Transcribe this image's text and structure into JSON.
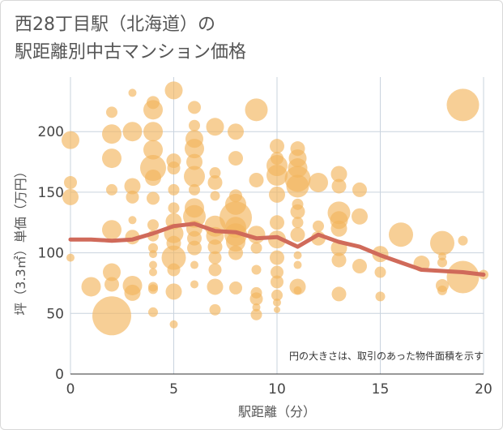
{
  "chart_data": {
    "type": "scatter",
    "title_line1": "西28丁目駅（北海道）の",
    "title_line2": "駅距離別中古マンション価格",
    "xlabel": "駅距離（分）",
    "ylabel": "坪（3.3㎡）単価（万円）",
    "annotation": "円の大きさは、取引のあった物件面積を示す",
    "xlim": [
      0,
      20
    ],
    "ylim": [
      0,
      245
    ],
    "xticks": [
      "0",
      "5",
      "10",
      "15",
      "20"
    ],
    "yticks": [
      "0",
      "50",
      "100",
      "150",
      "200"
    ],
    "xtick_values": [
      0,
      5,
      10,
      15,
      20
    ],
    "ytick_values": [
      0,
      50,
      100,
      150,
      200
    ],
    "grid": true,
    "colors": {
      "bubble": "#f3b55e",
      "trend": "#d06a5a",
      "grid": "#c9d3de"
    },
    "points": [
      {
        "x": 0,
        "y": 193,
        "s": 11
      },
      {
        "x": 0,
        "y": 158,
        "s": 8
      },
      {
        "x": 0,
        "y": 146,
        "s": 10
      },
      {
        "x": 0,
        "y": 96,
        "s": 5
      },
      {
        "x": 1,
        "y": 72,
        "s": 12
      },
      {
        "x": 2,
        "y": 216,
        "s": 7
      },
      {
        "x": 2,
        "y": 198,
        "s": 12
      },
      {
        "x": 2,
        "y": 178,
        "s": 12
      },
      {
        "x": 2,
        "y": 152,
        "s": 7
      },
      {
        "x": 2,
        "y": 119,
        "s": 12
      },
      {
        "x": 2,
        "y": 84,
        "s": 11
      },
      {
        "x": 2,
        "y": 74,
        "s": 9
      },
      {
        "x": 2,
        "y": 48,
        "s": 24
      },
      {
        "x": 3,
        "y": 232,
        "s": 5
      },
      {
        "x": 3,
        "y": 200,
        "s": 12
      },
      {
        "x": 3,
        "y": 155,
        "s": 10
      },
      {
        "x": 3,
        "y": 146,
        "s": 8
      },
      {
        "x": 3,
        "y": 127,
        "s": 5
      },
      {
        "x": 3,
        "y": 113,
        "s": 9
      },
      {
        "x": 3,
        "y": 73,
        "s": 12
      },
      {
        "x": 3,
        "y": 67,
        "s": 10
      },
      {
        "x": 4,
        "y": 224,
        "s": 8
      },
      {
        "x": 4,
        "y": 218,
        "s": 12
      },
      {
        "x": 4,
        "y": 200,
        "s": 12
      },
      {
        "x": 4,
        "y": 185,
        "s": 12
      },
      {
        "x": 4,
        "y": 170,
        "s": 16
      },
      {
        "x": 4,
        "y": 162,
        "s": 10
      },
      {
        "x": 4,
        "y": 145,
        "s": 8
      },
      {
        "x": 4,
        "y": 123,
        "s": 7
      },
      {
        "x": 4,
        "y": 114,
        "s": 7
      },
      {
        "x": 4,
        "y": 104,
        "s": 6
      },
      {
        "x": 4,
        "y": 99,
        "s": 5
      },
      {
        "x": 4,
        "y": 90,
        "s": 5
      },
      {
        "x": 4,
        "y": 84,
        "s": 5
      },
      {
        "x": 4,
        "y": 72,
        "s": 6
      },
      {
        "x": 4,
        "y": 70,
        "s": 6
      },
      {
        "x": 4,
        "y": 51,
        "s": 6
      },
      {
        "x": 5,
        "y": 234,
        "s": 11
      },
      {
        "x": 5,
        "y": 176,
        "s": 9
      },
      {
        "x": 5,
        "y": 170,
        "s": 8
      },
      {
        "x": 5,
        "y": 152,
        "s": 7
      },
      {
        "x": 5,
        "y": 137,
        "s": 7
      },
      {
        "x": 5,
        "y": 126,
        "s": 10
      },
      {
        "x": 5,
        "y": 116,
        "s": 12
      },
      {
        "x": 5,
        "y": 108,
        "s": 9
      },
      {
        "x": 5,
        "y": 96,
        "s": 15
      },
      {
        "x": 5,
        "y": 86,
        "s": 8
      },
      {
        "x": 5,
        "y": 68,
        "s": 10
      },
      {
        "x": 5,
        "y": 41,
        "s": 5
      },
      {
        "x": 6,
        "y": 220,
        "s": 8
      },
      {
        "x": 6,
        "y": 205,
        "s": 7
      },
      {
        "x": 6,
        "y": 194,
        "s": 11
      },
      {
        "x": 6,
        "y": 186,
        "s": 12
      },
      {
        "x": 6,
        "y": 175,
        "s": 10
      },
      {
        "x": 6,
        "y": 163,
        "s": 13
      },
      {
        "x": 6,
        "y": 152,
        "s": 7
      },
      {
        "x": 6,
        "y": 137,
        "s": 12
      },
      {
        "x": 6,
        "y": 130,
        "s": 14
      },
      {
        "x": 6,
        "y": 120,
        "s": 10
      },
      {
        "x": 6,
        "y": 112,
        "s": 9
      },
      {
        "x": 6,
        "y": 104,
        "s": 9
      },
      {
        "x": 6,
        "y": 90,
        "s": 5
      },
      {
        "x": 6,
        "y": 74,
        "s": 5
      },
      {
        "x": 7,
        "y": 204,
        "s": 11
      },
      {
        "x": 7,
        "y": 166,
        "s": 7
      },
      {
        "x": 7,
        "y": 158,
        "s": 9
      },
      {
        "x": 7,
        "y": 147,
        "s": 6
      },
      {
        "x": 7,
        "y": 122,
        "s": 13
      },
      {
        "x": 7,
        "y": 114,
        "s": 11
      },
      {
        "x": 7,
        "y": 105,
        "s": 9
      },
      {
        "x": 7,
        "y": 96,
        "s": 8
      },
      {
        "x": 7,
        "y": 86,
        "s": 8
      },
      {
        "x": 7,
        "y": 72,
        "s": 10
      },
      {
        "x": 7,
        "y": 53,
        "s": 7
      },
      {
        "x": 8,
        "y": 200,
        "s": 10
      },
      {
        "x": 8,
        "y": 178,
        "s": 9
      },
      {
        "x": 8,
        "y": 147,
        "s": 8
      },
      {
        "x": 8,
        "y": 140,
        "s": 13
      },
      {
        "x": 8,
        "y": 129,
        "s": 20
      },
      {
        "x": 8,
        "y": 121,
        "s": 13
      },
      {
        "x": 8,
        "y": 115,
        "s": 14
      },
      {
        "x": 8,
        "y": 109,
        "s": 12
      },
      {
        "x": 8,
        "y": 100,
        "s": 9
      },
      {
        "x": 8,
        "y": 71,
        "s": 8
      },
      {
        "x": 9,
        "y": 218,
        "s": 14
      },
      {
        "x": 9,
        "y": 160,
        "s": 9
      },
      {
        "x": 9,
        "y": 115,
        "s": 11
      },
      {
        "x": 9,
        "y": 104,
        "s": 7
      },
      {
        "x": 9,
        "y": 86,
        "s": 6
      },
      {
        "x": 9,
        "y": 67,
        "s": 7
      },
      {
        "x": 9,
        "y": 62,
        "s": 8
      },
      {
        "x": 9,
        "y": 55,
        "s": 5
      },
      {
        "x": 9,
        "y": 49,
        "s": 7
      },
      {
        "x": 10,
        "y": 188,
        "s": 9
      },
      {
        "x": 10,
        "y": 178,
        "s": 8
      },
      {
        "x": 10,
        "y": 172,
        "s": 13
      },
      {
        "x": 10,
        "y": 164,
        "s": 13
      },
      {
        "x": 10,
        "y": 148,
        "s": 10
      },
      {
        "x": 10,
        "y": 125,
        "s": 9
      },
      {
        "x": 10,
        "y": 111,
        "s": 11
      },
      {
        "x": 10,
        "y": 96,
        "s": 9
      },
      {
        "x": 10,
        "y": 84,
        "s": 8
      },
      {
        "x": 10,
        "y": 76,
        "s": 8
      },
      {
        "x": 10,
        "y": 65,
        "s": 7
      },
      {
        "x": 10,
        "y": 59,
        "s": 5
      },
      {
        "x": 10,
        "y": 53,
        "s": 4
      },
      {
        "x": 11,
        "y": 186,
        "s": 9
      },
      {
        "x": 11,
        "y": 178,
        "s": 11
      },
      {
        "x": 11,
        "y": 170,
        "s": 12
      },
      {
        "x": 11,
        "y": 161,
        "s": 16
      },
      {
        "x": 11,
        "y": 155,
        "s": 14
      },
      {
        "x": 11,
        "y": 140,
        "s": 7
      },
      {
        "x": 11,
        "y": 134,
        "s": 9
      },
      {
        "x": 11,
        "y": 125,
        "s": 7
      },
      {
        "x": 11,
        "y": 115,
        "s": 9
      },
      {
        "x": 11,
        "y": 98,
        "s": 5
      },
      {
        "x": 11,
        "y": 90,
        "s": 5
      },
      {
        "x": 11,
        "y": 72,
        "s": 10
      },
      {
        "x": 11,
        "y": 69,
        "s": 5
      },
      {
        "x": 12,
        "y": 158,
        "s": 12
      },
      {
        "x": 12,
        "y": 122,
        "s": 7
      },
      {
        "x": 12,
        "y": 112,
        "s": 9
      },
      {
        "x": 13,
        "y": 165,
        "s": 10
      },
      {
        "x": 13,
        "y": 155,
        "s": 9
      },
      {
        "x": 13,
        "y": 133,
        "s": 14
      },
      {
        "x": 13,
        "y": 127,
        "s": 11
      },
      {
        "x": 13,
        "y": 120,
        "s": 10
      },
      {
        "x": 13,
        "y": 104,
        "s": 10
      },
      {
        "x": 13,
        "y": 94,
        "s": 9
      },
      {
        "x": 13,
        "y": 66,
        "s": 9
      },
      {
        "x": 14,
        "y": 152,
        "s": 9
      },
      {
        "x": 14,
        "y": 130,
        "s": 10
      },
      {
        "x": 14,
        "y": 89,
        "s": 9
      },
      {
        "x": 15,
        "y": 99,
        "s": 10
      },
      {
        "x": 15,
        "y": 84,
        "s": 7
      },
      {
        "x": 15,
        "y": 64,
        "s": 6
      },
      {
        "x": 16,
        "y": 115,
        "s": 15
      },
      {
        "x": 17,
        "y": 91,
        "s": 10
      },
      {
        "x": 18,
        "y": 108,
        "s": 15
      },
      {
        "x": 18,
        "y": 97,
        "s": 5
      },
      {
        "x": 18,
        "y": 92,
        "s": 6
      },
      {
        "x": 18,
        "y": 73,
        "s": 8
      },
      {
        "x": 18,
        "y": 69,
        "s": 6
      },
      {
        "x": 19,
        "y": 222,
        "s": 20
      },
      {
        "x": 19,
        "y": 110,
        "s": 6
      },
      {
        "x": 19,
        "y": 80,
        "s": 20
      },
      {
        "x": 20,
        "y": 82,
        "s": 6
      }
    ],
    "trend": [
      {
        "x": 0,
        "y": 111
      },
      {
        "x": 1,
        "y": 111
      },
      {
        "x": 2,
        "y": 110
      },
      {
        "x": 3,
        "y": 111
      },
      {
        "x": 4,
        "y": 116
      },
      {
        "x": 5,
        "y": 122
      },
      {
        "x": 6,
        "y": 124
      },
      {
        "x": 7,
        "y": 118
      },
      {
        "x": 8,
        "y": 117
      },
      {
        "x": 9,
        "y": 112
      },
      {
        "x": 10,
        "y": 113
      },
      {
        "x": 11,
        "y": 105
      },
      {
        "x": 12,
        "y": 115
      },
      {
        "x": 13,
        "y": 109
      },
      {
        "x": 14,
        "y": 105
      },
      {
        "x": 15,
        "y": 98
      },
      {
        "x": 16,
        "y": 92
      },
      {
        "x": 17,
        "y": 86
      },
      {
        "x": 18,
        "y": 85
      },
      {
        "x": 19,
        "y": 84
      },
      {
        "x": 20,
        "y": 82
      }
    ]
  }
}
